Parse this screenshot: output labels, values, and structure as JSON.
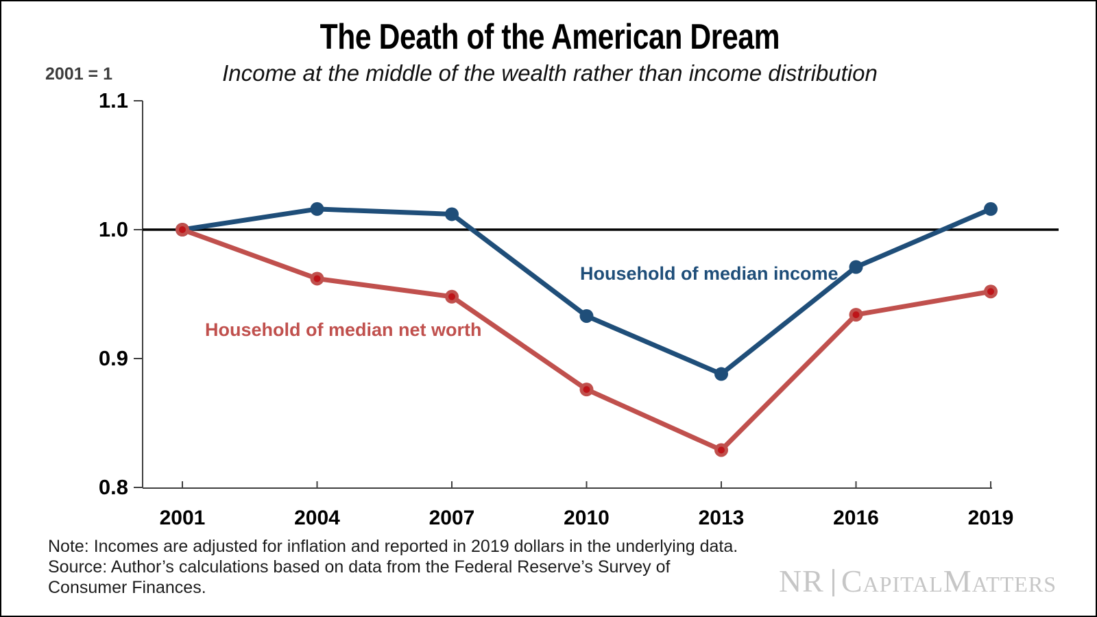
{
  "header": {
    "title": "The Death of the American Dream",
    "subtitle": "Income at the middle of the wealth rather than income distribution",
    "axis_unit_label": "2001 = 1"
  },
  "chart_data": {
    "type": "line",
    "x": [
      2001,
      2004,
      2007,
      2010,
      2013,
      2016,
      2019
    ],
    "xtick_labels": [
      "2001",
      "2004",
      "2007",
      "2010",
      "2013",
      "2016",
      "2019"
    ],
    "yticks": [
      1.1,
      1.0,
      0.9,
      0.8
    ],
    "ytick_labels": [
      "1.1",
      "1.0",
      "0.9",
      "0.8"
    ],
    "ylim": [
      0.8,
      1.1
    ],
    "baseline_value": 1.0,
    "grid": false,
    "legend_position": "inline-labels",
    "series": [
      {
        "name": "Household of median income",
        "color": "#1F4E79",
        "marker_center": "#1F4E79",
        "values": [
          1.0,
          1.016,
          1.012,
          0.933,
          0.888,
          0.971,
          1.016
        ]
      },
      {
        "name": "Household of median net worth",
        "color": "#C0504D",
        "marker_center": "#BE1419",
        "values": [
          1.0,
          0.962,
          0.948,
          0.876,
          0.829,
          0.934,
          0.952
        ]
      }
    ]
  },
  "footer": {
    "note_line": "Note: Incomes are adjusted for inflation and reported in 2019 dollars in the underlying data.",
    "source_line1": "Source: Author’s calculations based on data from the Federal Reserve’s Survey of",
    "source_line2": "Consumer Finances.",
    "logo_nr": "NR",
    "logo_brand": "CapitalMatters"
  },
  "colors": {
    "income_blue": "#1F4E79",
    "net_worth_red": "#C0504D",
    "axis_gray": "#3f3f3f",
    "baseline_black": "#000000",
    "logo_gray": "#c6c6c6"
  }
}
